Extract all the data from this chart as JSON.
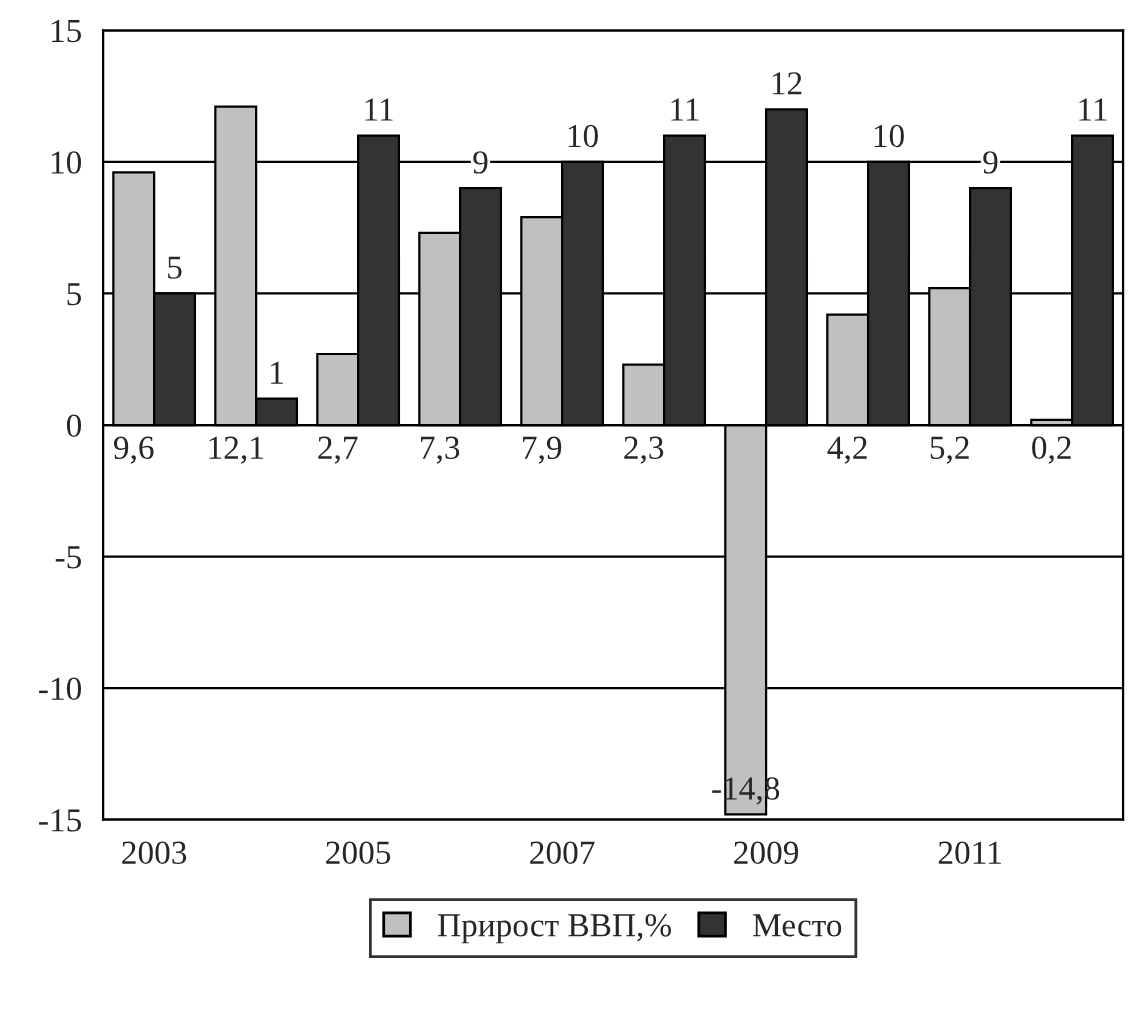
{
  "chart_data": {
    "type": "bar",
    "categories": [
      "2003",
      null,
      "2005",
      null,
      "2007",
      null,
      "2009",
      null,
      "2011",
      null
    ],
    "series": [
      {
        "name": "Прирост ВВП,%",
        "color": "#c0c0c0",
        "values": [
          9.6,
          12.1,
          2.7,
          7.3,
          7.9,
          2.3,
          -14.8,
          4.2,
          5.2,
          0.2
        ],
        "value_labels": [
          "9,6",
          "12,1",
          "2,7",
          "7,3",
          "7,9",
          "2,3",
          "-14,8",
          "4,2",
          "5,2",
          "0,2"
        ]
      },
      {
        "name": "Место",
        "color": "#333333",
        "values": [
          5,
          1,
          11,
          9,
          10,
          11,
          12,
          10,
          9,
          11
        ],
        "value_labels": [
          "5",
          "1",
          "11",
          "9",
          "10",
          "11",
          "12",
          "10",
          "9",
          "11"
        ]
      }
    ],
    "ylim": [
      -15,
      15
    ],
    "yticks": [
      -15,
      -10,
      -5,
      0,
      5,
      10,
      15
    ],
    "grid": "y",
    "legend": "bottom"
  }
}
